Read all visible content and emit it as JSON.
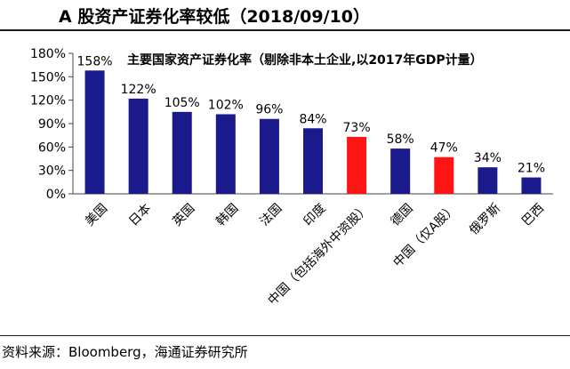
{
  "header": {
    "title": "A 股资产证券化率较低（2018/09/10）"
  },
  "footer": {
    "source": "资料来源：Bloomberg，海通证券研究所"
  },
  "chart_data": {
    "type": "bar",
    "title": "主要国家资产证券化率（剔除非本土企业,以2017年GDP计量）",
    "xlabel": "",
    "ylabel": "",
    "ylim": [
      0,
      180
    ],
    "yticks": [
      0,
      30,
      60,
      90,
      120,
      150,
      180
    ],
    "tick_suffix": "%",
    "grid": false,
    "categories": [
      "美国",
      "日本",
      "英国",
      "韩国",
      "法国",
      "印度",
      "中国（包括海外中资股）",
      "德国",
      "中国（仅A股）",
      "俄罗斯",
      "巴西"
    ],
    "values": [
      158,
      122,
      105,
      102,
      96,
      84,
      73,
      58,
      47,
      34,
      21
    ],
    "value_labels": [
      "158%",
      "122%",
      "105%",
      "102%",
      "96%",
      "84%",
      "73%",
      "58%",
      "47%",
      "34%",
      "21%"
    ],
    "colors": {
      "default": "#1a1a8c",
      "highlight": "#ff1414"
    },
    "highlight_categories": [
      "中国（包括海外中资股）",
      "中国（仅A股）"
    ]
  }
}
